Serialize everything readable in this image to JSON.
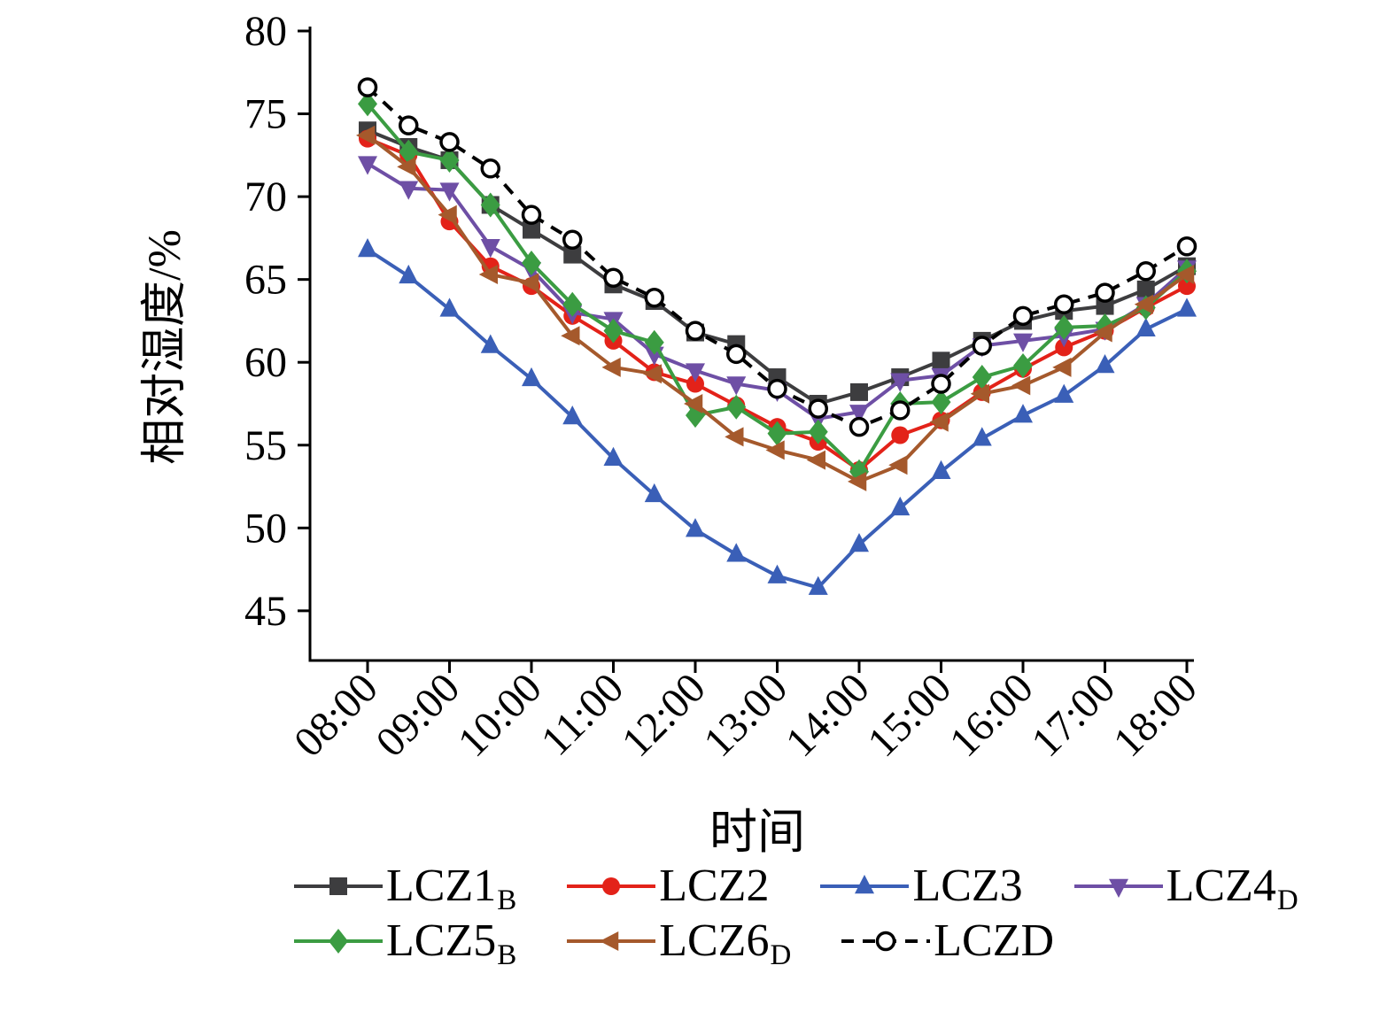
{
  "figure": {
    "background": "#ffffff",
    "axis_color": "#000000"
  },
  "chart_data": {
    "type": "line",
    "title": "",
    "ylabel": "相对湿度/%",
    "xlabel": "时间",
    "ylim": [
      42,
      80
    ],
    "yticks": [
      45,
      50,
      55,
      60,
      65,
      70,
      75,
      80
    ],
    "xtick_labels": [
      "08:00",
      "09:00",
      "10:00",
      "11:00",
      "12:00",
      "13:00",
      "14:00",
      "15:00",
      "16:00",
      "17:00",
      "18:00"
    ],
    "xtick_hours": [
      8,
      9,
      10,
      11,
      12,
      13,
      14,
      15,
      16,
      17,
      18
    ],
    "x": [
      8.0,
      8.5,
      9.0,
      9.5,
      10.0,
      10.5,
      11.0,
      11.5,
      12.0,
      12.5,
      13.0,
      13.5,
      14.0,
      14.5,
      15.0,
      15.5,
      16.0,
      16.5,
      17.0,
      17.5,
      18.0
    ],
    "grid": false,
    "legend_position": "bottom",
    "legend_rows": [
      [
        0,
        1,
        2,
        3
      ],
      [
        4,
        5,
        6
      ]
    ],
    "series": [
      {
        "name": "LCZ1B",
        "label_main": "LCZ1",
        "label_sub": "B",
        "color": "#3d3d3f",
        "marker": "square",
        "dash": null,
        "values": [
          74.0,
          73.0,
          72.2,
          69.5,
          68.0,
          66.5,
          64.7,
          63.7,
          61.8,
          61.1,
          59.1,
          57.5,
          58.2,
          59.1,
          60.1,
          61.3,
          62.5,
          63.1,
          63.4,
          64.4,
          65.8
        ]
      },
      {
        "name": "LCZ2",
        "label_main": "LCZ2",
        "label_sub": "",
        "color": "#e32219",
        "marker": "circle",
        "dash": null,
        "values": [
          73.5,
          72.5,
          68.5,
          65.8,
          64.6,
          62.8,
          61.3,
          59.4,
          58.7,
          57.4,
          56.1,
          55.2,
          53.5,
          55.6,
          56.5,
          58.2,
          59.6,
          60.9,
          61.9,
          63.3,
          64.6
        ]
      },
      {
        "name": "LCZ3",
        "label_main": "LCZ3",
        "label_sub": "",
        "color": "#3a5fb7",
        "marker": "triangle-up",
        "dash": null,
        "values": [
          66.8,
          65.2,
          63.2,
          61.0,
          59.0,
          56.7,
          54.2,
          52.0,
          49.9,
          48.4,
          47.1,
          46.4,
          49.0,
          51.2,
          53.4,
          55.4,
          56.8,
          58.0,
          59.8,
          62.0,
          63.2
        ]
      },
      {
        "name": "LCZ4D",
        "label_main": "LCZ4",
        "label_sub": "D",
        "color": "#6e4fa5",
        "marker": "triangle-down",
        "dash": null,
        "values": [
          72.0,
          70.5,
          70.4,
          67.0,
          65.6,
          63.0,
          62.6,
          60.5,
          59.5,
          58.7,
          58.3,
          56.6,
          57.0,
          58.9,
          59.2,
          61.0,
          61.3,
          61.6,
          62.0,
          63.5,
          65.7
        ]
      },
      {
        "name": "LCZ5B",
        "label_main": "LCZ5",
        "label_sub": "B",
        "color": "#3b9c42",
        "marker": "diamond",
        "dash": null,
        "values": [
          75.6,
          72.7,
          72.2,
          69.5,
          66.0,
          63.5,
          61.9,
          61.2,
          56.8,
          57.3,
          55.7,
          55.8,
          53.4,
          57.5,
          57.6,
          59.1,
          59.8,
          62.1,
          62.2,
          63.3,
          65.5
        ]
      },
      {
        "name": "LCZ6D",
        "label_main": "LCZ6",
        "label_sub": "D",
        "color": "#a5592c",
        "marker": "triangle-left",
        "dash": null,
        "values": [
          73.7,
          71.8,
          68.9,
          65.3,
          64.8,
          61.6,
          59.7,
          59.3,
          57.5,
          55.5,
          54.7,
          54.1,
          52.8,
          53.8,
          56.4,
          58.1,
          58.6,
          59.7,
          61.8,
          63.5,
          65.3
        ]
      },
      {
        "name": "LCZD",
        "label_main": "LCZD",
        "label_sub": "",
        "color": "#000000",
        "marker": "circle-open",
        "dash": [
          14,
          10
        ],
        "values": [
          76.6,
          74.3,
          73.3,
          71.7,
          68.9,
          67.4,
          65.1,
          63.9,
          61.9,
          60.5,
          58.4,
          57.2,
          56.1,
          57.1,
          58.7,
          61.0,
          62.8,
          63.5,
          64.2,
          65.5,
          67.0
        ]
      }
    ]
  }
}
